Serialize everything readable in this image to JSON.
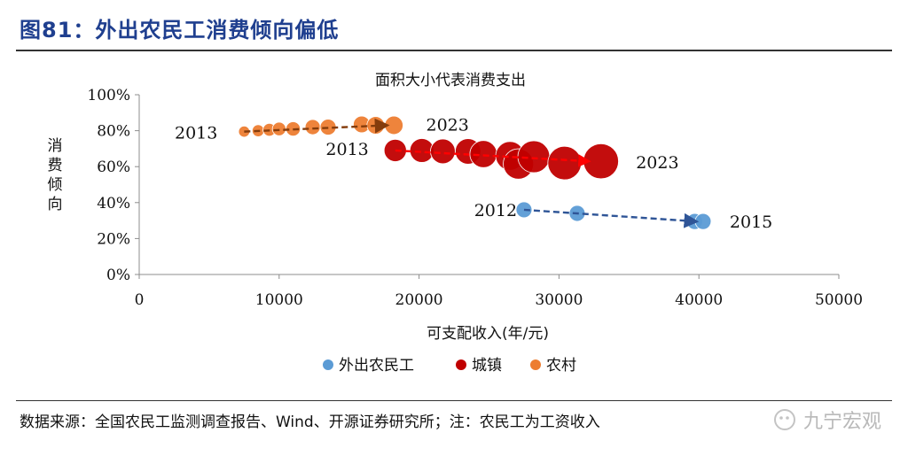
{
  "figure": {
    "title": "图81：外出农民工消费倾向偏低",
    "source_note": "数据来源：全国农民工监测调查报告、Wind、开源证券研究所；注：农民工为工资收入",
    "watermark": "九宁宏观"
  },
  "chart_data": {
    "type": "scatter",
    "subtitle": "面积大小代表消费支出",
    "xlabel": "可支配收入(年/元)",
    "ylabel": "消费倾向",
    "xlim": [
      0,
      50000
    ],
    "ylim": [
      0,
      100
    ],
    "x_ticks": [
      0,
      10000,
      20000,
      30000,
      40000,
      50000
    ],
    "x_tick_labels": [
      "0",
      "10000",
      "20000",
      "30000",
      "40000",
      "50000"
    ],
    "y_ticks": [
      0,
      20,
      40,
      60,
      80,
      100
    ],
    "y_tick_labels": [
      "0%",
      "20%",
      "40%",
      "60%",
      "80%",
      "100%"
    ],
    "grid": false,
    "legend_position": "bottom",
    "series": [
      {
        "name": "外出农民工",
        "color": "#5b9bd5",
        "arrow_color": "#2f5597",
        "points": [
          {
            "x": 27500,
            "y": 36,
            "size": 1
          },
          {
            "x": 31300,
            "y": 34,
            "size": 1
          },
          {
            "x": 39700,
            "y": 29.5,
            "size": 1
          },
          {
            "x": 40300,
            "y": 29.5,
            "size": 1
          }
        ],
        "labels": [
          {
            "text": "2012",
            "x": 27000,
            "y": 35.5,
            "anchor": "end"
          },
          {
            "text": "2015",
            "x": 42200,
            "y": 29,
            "anchor": "start"
          }
        ]
      },
      {
        "name": "城镇",
        "color": "#c00000",
        "arrow_color": "#ff0000",
        "points": [
          {
            "x": 18300,
            "y": 69,
            "size": 1.4
          },
          {
            "x": 20200,
            "y": 69,
            "size": 1.5
          },
          {
            "x": 21700,
            "y": 68.5,
            "size": 1.55
          },
          {
            "x": 23500,
            "y": 68.5,
            "size": 1.6
          },
          {
            "x": 24600,
            "y": 67,
            "size": 1.7
          },
          {
            "x": 26500,
            "y": 66,
            "size": 1.8
          },
          {
            "x": 27100,
            "y": 61.5,
            "size": 1.9
          },
          {
            "x": 28200,
            "y": 65.5,
            "size": 2.0
          },
          {
            "x": 30400,
            "y": 62,
            "size": 2.1
          },
          {
            "x": 33000,
            "y": 63,
            "size": 2.2
          }
        ],
        "labels": [
          {
            "text": "2013",
            "x": 16400,
            "y": 69.5,
            "anchor": "end"
          },
          {
            "text": "2023",
            "x": 35500,
            "y": 62,
            "anchor": "start"
          }
        ]
      },
      {
        "name": "农村",
        "color": "#ed7d31",
        "arrow_color": "#843c0c",
        "points": [
          {
            "x": 7500,
            "y": 79.5,
            "size": 0.7
          },
          {
            "x": 8500,
            "y": 80,
            "size": 0.75
          },
          {
            "x": 9300,
            "y": 80.5,
            "size": 0.8
          },
          {
            "x": 10000,
            "y": 81,
            "size": 0.85
          },
          {
            "x": 11000,
            "y": 81,
            "size": 0.9
          },
          {
            "x": 12400,
            "y": 82,
            "size": 0.95
          },
          {
            "x": 13500,
            "y": 82,
            "size": 1.0
          },
          {
            "x": 15900,
            "y": 83.5,
            "size": 1.05
          },
          {
            "x": 16900,
            "y": 83,
            "size": 1.1
          },
          {
            "x": 18200,
            "y": 83,
            "size": 1.15
          }
        ],
        "labels": [
          {
            "text": "2013",
            "x": 5600,
            "y": 78.5,
            "anchor": "end"
          },
          {
            "text": "2023",
            "x": 20500,
            "y": 83,
            "anchor": "start"
          }
        ]
      }
    ]
  }
}
